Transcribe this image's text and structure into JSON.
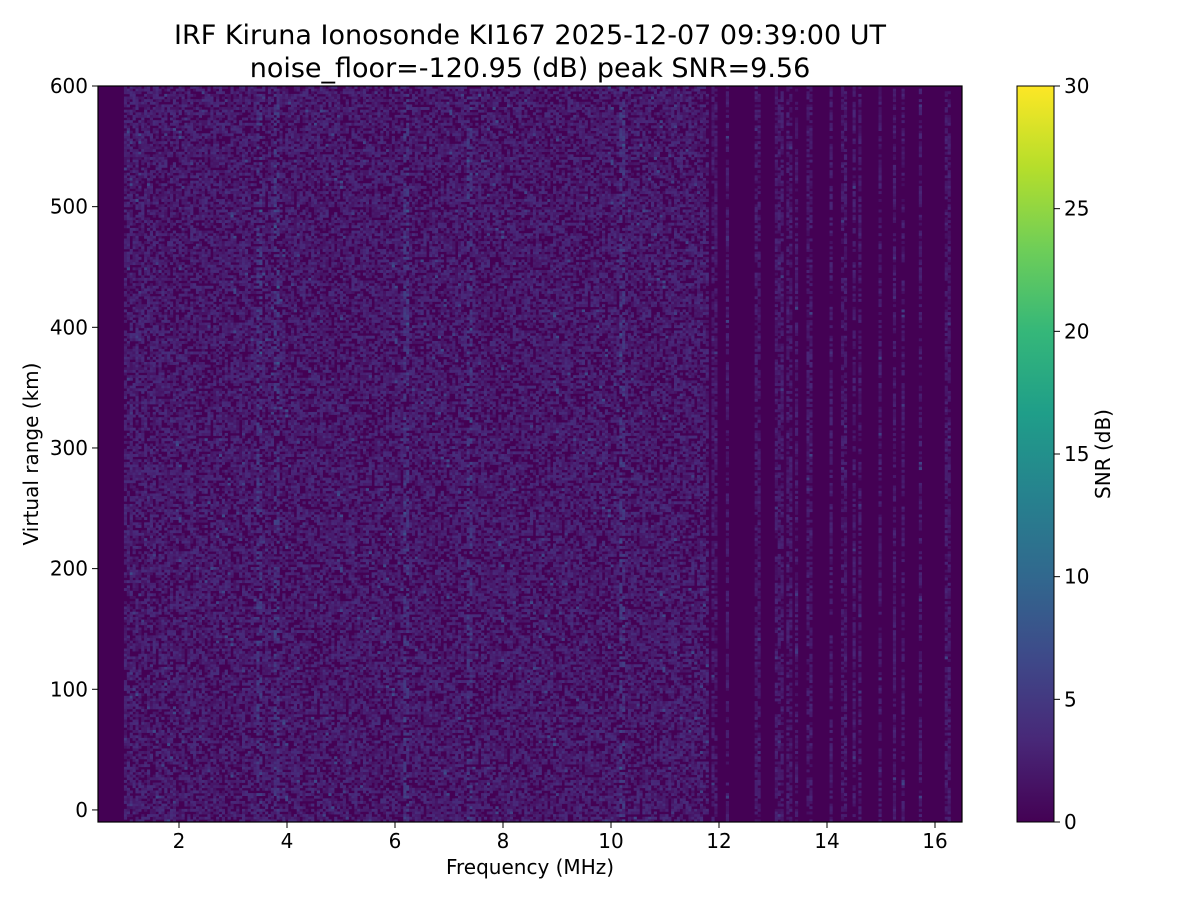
{
  "chart_data": {
    "type": "heatmap",
    "title": "IRF Kiruna Ionosonde KI167 2025-12-07 09:39:00  UT",
    "subtitle": "noise_floor=-120.95 (dB) peak SNR=9.56",
    "xlabel": "Frequency (MHz)",
    "ylabel": "Virtual range (km)",
    "colorbar_label": "SNR (dB)",
    "colormap": "viridis",
    "colorbar_colors": [
      "#440154",
      "#482878",
      "#3e4989",
      "#31688e",
      "#26828e",
      "#1f9e89",
      "#35b779",
      "#6ece58",
      "#b5de2b",
      "#fde725"
    ],
    "xlim": [
      0.5,
      16.5
    ],
    "ylim": [
      -10,
      600
    ],
    "clim": [
      0,
      30
    ],
    "x_ticks": [
      2,
      4,
      6,
      8,
      10,
      12,
      14,
      16
    ],
    "y_ticks": [
      0,
      100,
      200,
      300,
      400,
      500,
      600
    ],
    "c_ticks": [
      0,
      5,
      10,
      15,
      20,
      25,
      30
    ],
    "x_tick_labels": [
      "2",
      "4",
      "6",
      "8",
      "10",
      "12",
      "14",
      "16"
    ],
    "y_tick_labels": [
      "0",
      "100",
      "200",
      "300",
      "400",
      "500",
      "600"
    ],
    "c_tick_labels": [
      "0",
      "5",
      "10",
      "15",
      "20",
      "25",
      "30"
    ],
    "grid": false,
    "noise_floor_db": -120.95,
    "peak_snr_db": 9.56,
    "freq_range_mhz": [
      0.5,
      16.5
    ],
    "range_km": [
      -10,
      600
    ],
    "dense_region_mhz": [
      1.0,
      11.8
    ],
    "sparse_region_mhz": [
      11.8,
      16.3
    ],
    "quiet_column_freqs_mhz": [
      0.5,
      0.9,
      16.3,
      16.5
    ],
    "typical_snr_db": [
      0,
      4
    ],
    "bright_column_freqs_mhz": [
      3.5,
      3.8,
      6.2,
      7.4,
      10.2,
      13.5,
      14.0,
      15.5
    ]
  }
}
